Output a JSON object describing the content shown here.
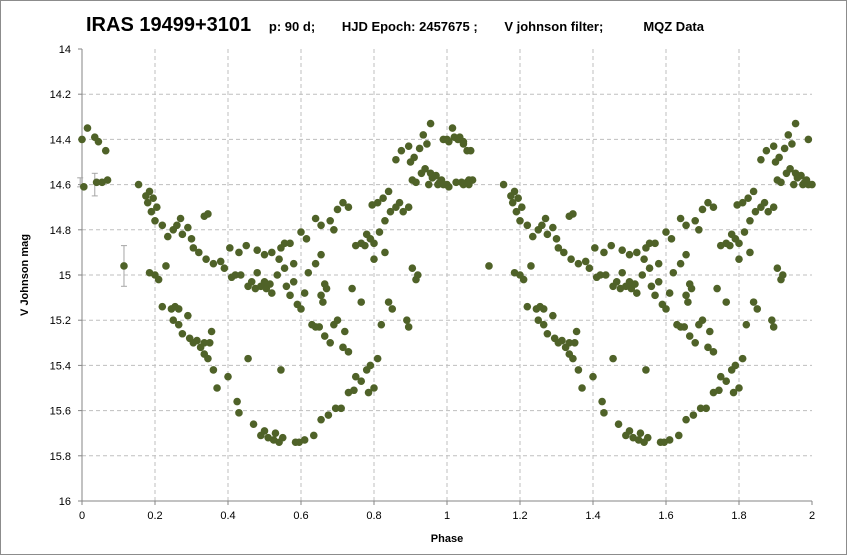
{
  "title": {
    "object": "IRAS 19499+3101",
    "period": "p: 90 d;",
    "epoch": "HJD Epoch: 2457675 ;",
    "filter": "V johnson filter;",
    "source": "MQZ Data"
  },
  "colors": {
    "marker": "#4f6228",
    "grid": "#bfbfbf",
    "axis": "#868686",
    "errorbar": "#a6a6a6"
  },
  "chart_data": {
    "type": "scatter",
    "xlabel": "Phase",
    "ylabel": "V Johnson mag",
    "xlim": [
      0,
      2
    ],
    "ylim": [
      14,
      16
    ],
    "y_reversed": true,
    "grid": true,
    "x_ticks": [
      "0",
      "0.2",
      "0.4",
      "0.6",
      "0.8",
      "1",
      "1.2",
      "1.4",
      "1.6",
      "1.8",
      "2"
    ],
    "y_ticks": [
      "14",
      "14.2",
      "14.4",
      "14.6",
      "14.8",
      "15",
      "15.2",
      "15.4",
      "15.6",
      "15.8",
      "16"
    ],
    "error_bars": [
      {
        "x": -0.005,
        "y": 14.59,
        "err": 0.02
      },
      {
        "x": 0.035,
        "y": 14.6,
        "err": 0.05
      },
      {
        "x": 0.115,
        "y": 14.96,
        "err": 0.09
      }
    ],
    "series": [
      {
        "points": [
          [
            0.0,
            14.4
          ],
          [
            0.015,
            14.35
          ],
          [
            0.035,
            14.39
          ],
          [
            0.045,
            14.41
          ],
          [
            0.065,
            14.45
          ],
          [
            0.005,
            14.61
          ],
          [
            0.04,
            14.59
          ],
          [
            0.055,
            14.59
          ],
          [
            0.07,
            14.58
          ],
          [
            0.115,
            14.96
          ],
          [
            0.155,
            14.6
          ],
          [
            0.175,
            14.65
          ],
          [
            0.185,
            14.63
          ],
          [
            0.195,
            14.66
          ],
          [
            0.18,
            14.68
          ],
          [
            0.19,
            14.72
          ],
          [
            0.205,
            14.7
          ],
          [
            0.2,
            14.76
          ],
          [
            0.22,
            14.78
          ],
          [
            0.235,
            14.83
          ],
          [
            0.25,
            14.8
          ],
          [
            0.26,
            14.78
          ],
          [
            0.27,
            14.75
          ],
          [
            0.275,
            14.82
          ],
          [
            0.29,
            14.79
          ],
          [
            0.3,
            14.84
          ],
          [
            0.305,
            14.88
          ],
          [
            0.32,
            14.9
          ],
          [
            0.335,
            14.74
          ],
          [
            0.345,
            14.73
          ],
          [
            0.34,
            14.93
          ],
          [
            0.36,
            14.95
          ],
          [
            0.38,
            14.94
          ],
          [
            0.39,
            14.97
          ],
          [
            0.405,
            14.88
          ],
          [
            0.41,
            15.01
          ],
          [
            0.42,
            15.0
          ],
          [
            0.435,
            15.0
          ],
          [
            0.43,
            14.9
          ],
          [
            0.45,
            14.87
          ],
          [
            0.185,
            14.99
          ],
          [
            0.2,
            15.0
          ],
          [
            0.21,
            15.02
          ],
          [
            0.23,
            14.96
          ],
          [
            0.22,
            15.14
          ],
          [
            0.245,
            15.15
          ],
          [
            0.255,
            15.14
          ],
          [
            0.265,
            15.15
          ],
          [
            0.25,
            15.2
          ],
          [
            0.265,
            15.22
          ],
          [
            0.275,
            15.26
          ],
          [
            0.29,
            15.18
          ],
          [
            0.295,
            15.28
          ],
          [
            0.305,
            15.3
          ],
          [
            0.315,
            15.29
          ],
          [
            0.325,
            15.32
          ],
          [
            0.335,
            15.35
          ],
          [
            0.335,
            15.3
          ],
          [
            0.35,
            15.3
          ],
          [
            0.345,
            15.37
          ],
          [
            0.355,
            15.25
          ],
          [
            0.36,
            15.42
          ],
          [
            0.37,
            15.5
          ],
          [
            0.4,
            15.45
          ],
          [
            0.425,
            15.56
          ],
          [
            0.43,
            15.61
          ],
          [
            0.455,
            15.37
          ],
          [
            0.47,
            15.66
          ],
          [
            0.49,
            15.71
          ],
          [
            0.5,
            15.69
          ],
          [
            0.51,
            15.72
          ],
          [
            0.525,
            15.73
          ],
          [
            0.53,
            15.7
          ],
          [
            0.54,
            15.74
          ],
          [
            0.55,
            15.72
          ],
          [
            0.545,
            15.42
          ],
          [
            0.585,
            15.74
          ],
          [
            0.595,
            15.74
          ],
          [
            0.61,
            15.73
          ],
          [
            0.635,
            15.71
          ],
          [
            0.655,
            15.64
          ],
          [
            0.675,
            15.62
          ],
          [
            0.695,
            15.59
          ],
          [
            0.71,
            15.59
          ],
          [
            0.73,
            15.52
          ],
          [
            0.745,
            15.51
          ],
          [
            0.75,
            15.45
          ],
          [
            0.765,
            15.47
          ],
          [
            0.78,
            15.42
          ],
          [
            0.79,
            15.4
          ],
          [
            0.785,
            15.52
          ],
          [
            0.8,
            15.5
          ],
          [
            0.81,
            15.37
          ],
          [
            0.455,
            15.05
          ],
          [
            0.465,
            15.03
          ],
          [
            0.475,
            15.06
          ],
          [
            0.48,
            14.99
          ],
          [
            0.49,
            15.05
          ],
          [
            0.5,
            15.03
          ],
          [
            0.505,
            15.06
          ],
          [
            0.515,
            15.04
          ],
          [
            0.52,
            15.08
          ],
          [
            0.535,
            15.0
          ],
          [
            0.54,
            14.93
          ],
          [
            0.555,
            14.97
          ],
          [
            0.56,
            15.05
          ],
          [
            0.57,
            15.09
          ],
          [
            0.58,
            15.03
          ],
          [
            0.59,
            15.13
          ],
          [
            0.6,
            15.15
          ],
          [
            0.61,
            15.08
          ],
          [
            0.62,
            14.99
          ],
          [
            0.63,
            15.22
          ],
          [
            0.64,
            15.23
          ],
          [
            0.65,
            15.23
          ],
          [
            0.665,
            15.27
          ],
          [
            0.68,
            15.3
          ],
          [
            0.69,
            15.22
          ],
          [
            0.7,
            15.2
          ],
          [
            0.715,
            15.32
          ],
          [
            0.72,
            15.25
          ],
          [
            0.73,
            15.34
          ],
          [
            0.74,
            15.06
          ],
          [
            0.765,
            15.12
          ],
          [
            0.66,
            15.12
          ],
          [
            0.655,
            15.09
          ],
          [
            0.67,
            15.06
          ],
          [
            0.665,
            15.04
          ],
          [
            0.48,
            14.89
          ],
          [
            0.5,
            14.91
          ],
          [
            0.52,
            14.9
          ],
          [
            0.545,
            14.88
          ],
          [
            0.555,
            14.86
          ],
          [
            0.57,
            14.86
          ],
          [
            0.58,
            14.95
          ],
          [
            0.6,
            14.81
          ],
          [
            0.615,
            14.84
          ],
          [
            0.64,
            14.75
          ],
          [
            0.655,
            14.78
          ],
          [
            0.68,
            14.76
          ],
          [
            0.7,
            14.71
          ],
          [
            0.715,
            14.68
          ],
          [
            0.73,
            14.7
          ],
          [
            0.69,
            14.8
          ],
          [
            0.655,
            14.91
          ],
          [
            0.64,
            14.95
          ],
          [
            0.75,
            14.87
          ],
          [
            0.765,
            14.86
          ],
          [
            0.78,
            14.82
          ],
          [
            0.79,
            14.84
          ],
          [
            0.8,
            14.86
          ],
          [
            0.775,
            14.87
          ],
          [
            0.815,
            14.81
          ],
          [
            0.83,
            14.76
          ],
          [
            0.795,
            14.69
          ],
          [
            0.81,
            14.68
          ],
          [
            0.825,
            14.66
          ],
          [
            0.84,
            14.63
          ],
          [
            0.845,
            14.72
          ],
          [
            0.86,
            14.7
          ],
          [
            0.87,
            14.68
          ],
          [
            0.88,
            14.72
          ],
          [
            0.895,
            14.7
          ],
          [
            0.905,
            14.58
          ],
          [
            0.915,
            14.59
          ],
          [
            0.93,
            14.55
          ],
          [
            0.94,
            14.53
          ],
          [
            0.955,
            14.55
          ],
          [
            0.97,
            14.56
          ],
          [
            0.985,
            14.58
          ],
          [
            0.86,
            14.49
          ],
          [
            0.875,
            14.45
          ],
          [
            0.895,
            14.43
          ],
          [
            0.9,
            14.5
          ],
          [
            0.91,
            14.48
          ],
          [
            0.925,
            14.44
          ],
          [
            0.945,
            14.42
          ],
          [
            0.95,
            14.6
          ],
          [
            0.96,
            14.57
          ],
          [
            0.975,
            14.6
          ],
          [
            0.98,
            14.59
          ],
          [
            0.99,
            14.4
          ],
          [
            1.0,
            14.6
          ],
          [
            1.005,
            14.41
          ],
          [
            1.02,
            14.39
          ],
          [
            1.025,
            14.59
          ],
          [
            1.03,
            14.4
          ],
          [
            1.045,
            14.42
          ],
          [
            1.055,
            14.45
          ],
          [
            1.06,
            14.58
          ],
          [
            0.89,
            15.2
          ],
          [
            0.895,
            15.23
          ],
          [
            0.905,
            14.97
          ],
          [
            0.915,
            15.02
          ],
          [
            0.92,
            15.0
          ],
          [
            0.935,
            14.38
          ],
          [
            0.955,
            14.33
          ],
          [
            0.99,
            14.6
          ],
          [
            1.045,
            14.6
          ],
          [
            1.06,
            14.6
          ],
          [
            0.8,
            14.93
          ],
          [
            0.83,
            14.9
          ],
          [
            0.82,
            15.22
          ],
          [
            0.84,
            15.12
          ],
          [
            0.85,
            15.15
          ]
        ]
      }
    ]
  }
}
